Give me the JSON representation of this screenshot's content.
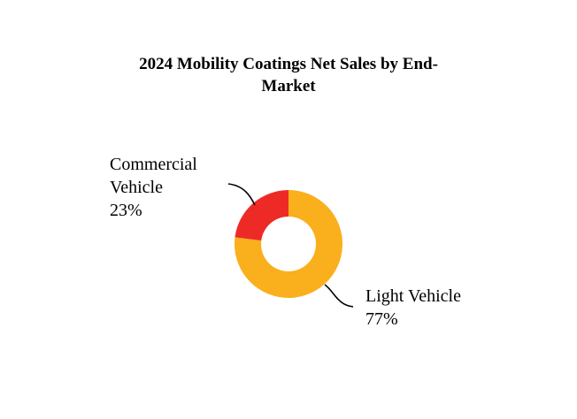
{
  "chart_data": {
    "type": "pie",
    "variant": "donut",
    "title": "2024 Mobility Coatings Net Sales by End-Market",
    "slices": [
      {
        "label": "Light Vehicle",
        "value": 77,
        "value_label": "77%",
        "color": "#FAAF1D"
      },
      {
        "label": "Commercial Vehicle",
        "value": 23,
        "value_label": "23%",
        "color": "#EE2A27"
      }
    ],
    "legend": "none",
    "label_style": "outside labels with leader lines"
  }
}
